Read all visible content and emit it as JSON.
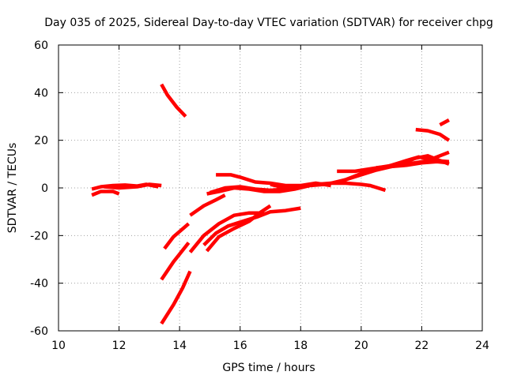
{
  "chart_data": {
    "type": "scatter",
    "title": "Day 035 of 2025, Sidereal Day-to-day VTEC variation (SDTVAR) for receiver chpg",
    "xlabel": "GPS time / hours",
    "ylabel": "SDTVAR / TECUs",
    "xlim": [
      10,
      24
    ],
    "ylim": [
      -60,
      60
    ],
    "xticks": [
      10,
      12,
      14,
      16,
      18,
      20,
      22,
      24
    ],
    "yticks": [
      -60,
      -40,
      -20,
      0,
      20,
      40,
      60
    ],
    "grid": true,
    "colors": {
      "series": "#ff0000"
    },
    "series": [
      {
        "points": [
          [
            11.1,
            -0.5
          ],
          [
            11.4,
            0.5
          ],
          [
            11.8,
            1.0
          ],
          [
            12.2,
            1.2
          ],
          [
            12.6,
            0.8
          ],
          [
            12.9,
            1.5
          ],
          [
            13.3,
            0.5
          ]
        ]
      },
      {
        "points": [
          [
            11.1,
            -3.0
          ],
          [
            11.4,
            -1.5
          ],
          [
            11.8,
            -1.5
          ],
          [
            12.0,
            -2.5
          ]
        ]
      },
      {
        "points": [
          [
            11.5,
            0.5
          ],
          [
            12.0,
            0.0
          ],
          [
            12.6,
            0.5
          ],
          [
            13.0,
            1.5
          ],
          [
            13.4,
            1.0
          ]
        ]
      },
      {
        "points": [
          [
            13.4,
            43.5
          ],
          [
            13.6,
            39.0
          ],
          [
            13.9,
            34.0
          ],
          [
            14.2,
            30.0
          ]
        ]
      },
      {
        "points": [
          [
            13.4,
            -57.0
          ],
          [
            13.8,
            -49.0
          ],
          [
            14.1,
            -42.0
          ],
          [
            14.35,
            -35.0
          ]
        ]
      },
      {
        "points": [
          [
            13.4,
            -38.5
          ],
          [
            13.8,
            -31.0
          ],
          [
            14.3,
            -23.0
          ]
        ]
      },
      {
        "points": [
          [
            13.5,
            -25.5
          ],
          [
            13.8,
            -20.5
          ],
          [
            14.3,
            -15.0
          ]
        ]
      },
      {
        "points": [
          [
            14.35,
            -11.5
          ],
          [
            14.8,
            -7.5
          ],
          [
            15.2,
            -5.0
          ],
          [
            15.5,
            -3.0
          ]
        ]
      },
      {
        "points": [
          [
            14.35,
            -27.0
          ],
          [
            14.8,
            -20.0
          ],
          [
            15.3,
            -15.0
          ],
          [
            15.8,
            -11.5
          ],
          [
            16.3,
            -10.5
          ],
          [
            16.8,
            -10.5
          ]
        ]
      },
      {
        "points": [
          [
            14.8,
            -24.0
          ],
          [
            15.2,
            -19.0
          ],
          [
            15.6,
            -16.0
          ],
          [
            16.1,
            -14.0
          ],
          [
            16.6,
            -12.0
          ],
          [
            17.0,
            -10.0
          ],
          [
            17.5,
            -9.5
          ],
          [
            18.0,
            -8.5
          ]
        ]
      },
      {
        "points": [
          [
            14.9,
            -26.5
          ],
          [
            15.3,
            -20.5
          ],
          [
            15.8,
            -17.0
          ],
          [
            16.3,
            -14.0
          ],
          [
            16.7,
            -10.0
          ],
          [
            17.0,
            -7.5
          ]
        ]
      },
      {
        "points": [
          [
            15.0,
            -2.0
          ],
          [
            15.5,
            0.0
          ],
          [
            16.0,
            0.5
          ],
          [
            16.5,
            -0.5
          ],
          [
            17.0,
            -1.0
          ],
          [
            17.5,
            -0.5
          ],
          [
            18.0,
            0.5
          ],
          [
            18.5,
            1.5
          ],
          [
            19.0,
            2.0
          ],
          [
            19.5,
            2.0
          ],
          [
            20.0,
            1.5
          ],
          [
            20.3,
            1.0
          ],
          [
            20.8,
            -1.0
          ]
        ]
      },
      {
        "points": [
          [
            14.9,
            -2.5
          ],
          [
            15.3,
            -1.5
          ],
          [
            15.8,
            0.0
          ],
          [
            16.3,
            -0.5
          ],
          [
            16.8,
            -1.5
          ],
          [
            17.3,
            -1.5
          ],
          [
            17.8,
            -0.5
          ],
          [
            18.3,
            1.0
          ],
          [
            18.8,
            1.5
          ]
        ]
      },
      {
        "points": [
          [
            15.2,
            5.5
          ],
          [
            15.7,
            5.5
          ],
          [
            16.0,
            4.5
          ],
          [
            16.5,
            2.5
          ],
          [
            17.0,
            2.0
          ],
          [
            17.5,
            1.0
          ],
          [
            18.0,
            1.0
          ],
          [
            18.5,
            2.0
          ],
          [
            19.0,
            1.0
          ]
        ]
      },
      {
        "points": [
          [
            17.0,
            1.5
          ],
          [
            17.5,
            0.0
          ],
          [
            18.0,
            0.5
          ],
          [
            18.5,
            1.5
          ],
          [
            19.0,
            1.5
          ]
        ]
      },
      {
        "points": [
          [
            19.0,
            2.0
          ],
          [
            19.5,
            3.5
          ],
          [
            20.0,
            5.5
          ],
          [
            20.5,
            7.5
          ],
          [
            21.0,
            9.0
          ],
          [
            21.5,
            10.0
          ],
          [
            22.0,
            11.0
          ],
          [
            22.4,
            11.5
          ],
          [
            22.9,
            11.0
          ]
        ]
      },
      {
        "points": [
          [
            19.2,
            7.0
          ],
          [
            19.8,
            7.0
          ],
          [
            20.3,
            8.0
          ],
          [
            20.8,
            9.0
          ],
          [
            21.3,
            10.0
          ],
          [
            21.8,
            12.5
          ],
          [
            22.2,
            13.5
          ],
          [
            22.5,
            12.0
          ],
          [
            22.9,
            10.0
          ]
        ]
      },
      {
        "points": [
          [
            19.4,
            3.0
          ],
          [
            20.0,
            6.0
          ],
          [
            20.6,
            8.0
          ],
          [
            21.0,
            9.5
          ],
          [
            21.5,
            11.5
          ],
          [
            21.9,
            13.0
          ],
          [
            22.3,
            12.0
          ],
          [
            22.9,
            15.0
          ]
        ]
      },
      {
        "points": [
          [
            21.8,
            24.5
          ],
          [
            22.2,
            24.0
          ],
          [
            22.6,
            22.5
          ],
          [
            22.9,
            20.0
          ]
        ]
      },
      {
        "points": [
          [
            22.6,
            26.5
          ],
          [
            22.9,
            28.5
          ]
        ]
      },
      {
        "points": [
          [
            20.5,
            8.5
          ],
          [
            21.0,
            9.0
          ],
          [
            21.5,
            9.5
          ],
          [
            22.0,
            10.5
          ],
          [
            22.5,
            11.0
          ],
          [
            22.9,
            10.5
          ]
        ]
      }
    ]
  }
}
